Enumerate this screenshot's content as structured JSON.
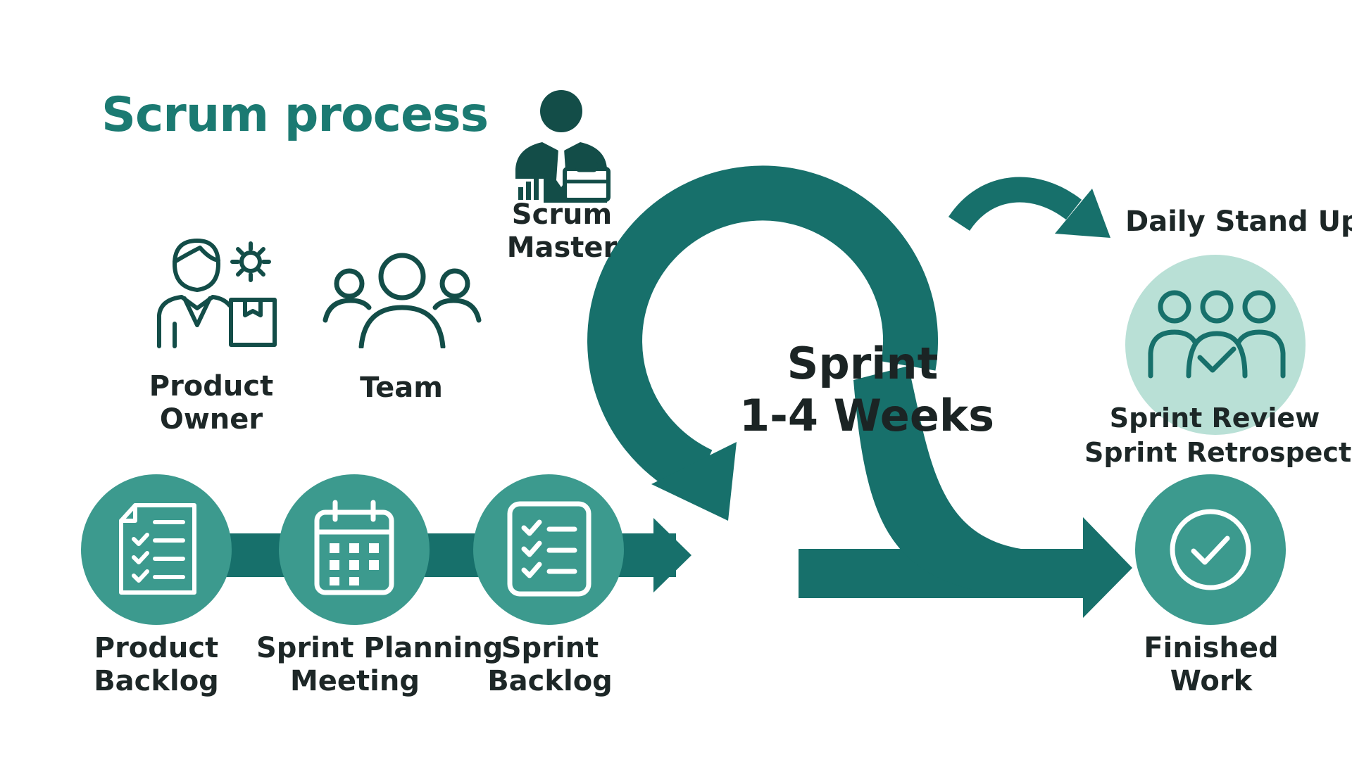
{
  "title": "Scrum process",
  "roles": {
    "scrum_master": [
      "Scrum",
      "Master"
    ],
    "product_owner": [
      "Product",
      "Owner"
    ],
    "team": "Team"
  },
  "flow": {
    "product_backlog": [
      "Product",
      "Backlog"
    ],
    "sprint_planning": [
      "Sprint Planning",
      "Meeting"
    ],
    "sprint_backlog": [
      "Sprint",
      "Backlog"
    ]
  },
  "sprint": {
    "title": "Sprint",
    "duration": "1-4 Weeks"
  },
  "daily_standup": "Daily Stand Up",
  "review": {
    "line1": "Sprint Review",
    "line2": "Sprint Retrospective"
  },
  "finished": [
    "Finished",
    "Work"
  ],
  "colors": {
    "primary_dark": "#17706b",
    "primary_circle": "#3c9a8e",
    "light_circle": "#b9e0d6",
    "title": "#1b7a72",
    "icon_dark": "#134d48",
    "text": "#1d2727"
  }
}
